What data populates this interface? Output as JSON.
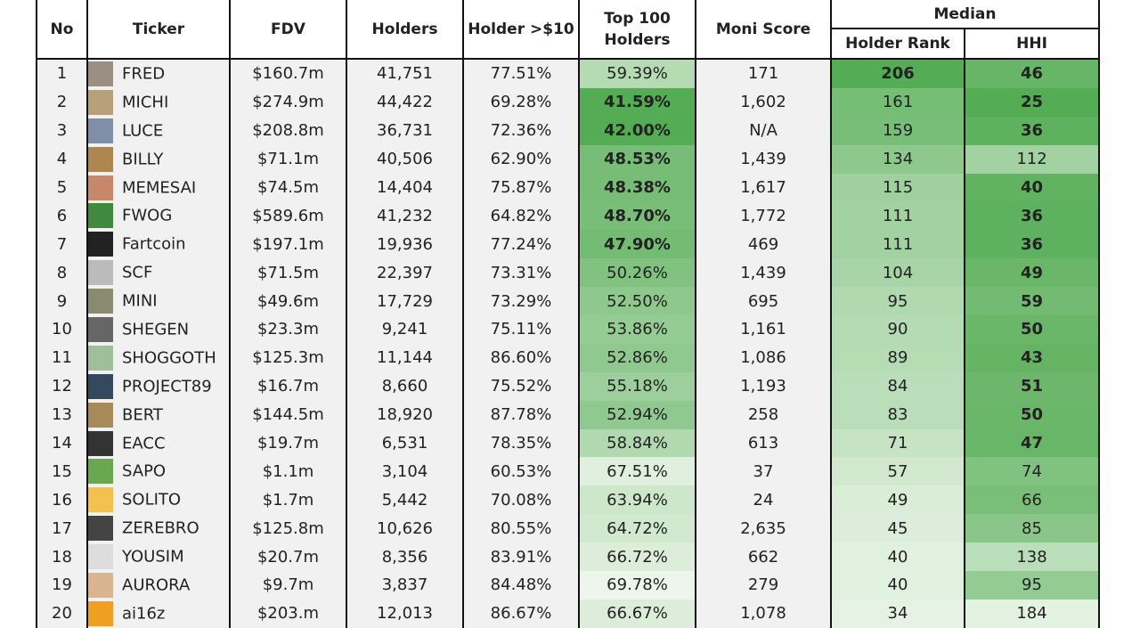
{
  "table": {
    "headers": [
      "No",
      "Ticker",
      "FDV",
      "Holders",
      "Holder >$10",
      "Top 100 Holders",
      "Moni Score"
    ],
    "group_header": "Median",
    "subheaders": [
      "Holder Rank",
      "HHI"
    ],
    "rows": [
      [
        1,
        "FRED",
        "$160.7m",
        "41,751",
        "77.51%",
        "59.39%",
        171,
        206,
        46
      ],
      [
        2,
        "MICHI",
        "$274.9m",
        "44,422",
        "69.28%",
        "41.59%",
        "1,602",
        161,
        25
      ],
      [
        3,
        "LUCE",
        "$208.8m",
        "36,731",
        "72.36%",
        "42.00%",
        "N/A",
        159,
        36
      ],
      [
        4,
        "BILLY",
        "$71.1m",
        "40,506",
        "62.90%",
        "48.53%",
        "1,439",
        134,
        112
      ],
      [
        5,
        "MEMESAI",
        "$74.5m",
        "14,404",
        "75.87%",
        "48.38%",
        "1,617",
        115,
        40
      ],
      [
        6,
        "FWOG",
        "$589.6m",
        "41,232",
        "64.82%",
        "48.70%",
        "1,772",
        111,
        36
      ],
      [
        7,
        "Fartcoin",
        "$197.1m",
        "19,936",
        "77.24%",
        "47.90%",
        469,
        111,
        36
      ],
      [
        8,
        "SCF",
        "$71.5m",
        "22,397",
        "73.31%",
        "50.26%",
        "1,439",
        104,
        49
      ],
      [
        9,
        "MINI",
        "$49.6m",
        "17,729",
        "73.29%",
        "52.50%",
        695,
        95,
        59
      ],
      [
        10,
        "SHEGEN",
        "$23.3m",
        "9,241",
        "75.11%",
        "53.86%",
        "1,161",
        90,
        50
      ],
      [
        11,
        "SHOGGOTH",
        "$125.3m",
        "11,144",
        "86.60%",
        "52.86%",
        "1,086",
        89,
        43
      ],
      [
        12,
        "PROJECT89",
        "$16.7m",
        "8,660",
        "75.52%",
        "55.18%",
        "1,193",
        84,
        51
      ],
      [
        13,
        "BERT",
        "$144.5m",
        "18,920",
        "87.78%",
        "52.94%",
        258,
        83,
        50
      ],
      [
        14,
        "EACC",
        "$19.7m",
        "6,531",
        "78.35%",
        "58.84%",
        613,
        71,
        47
      ],
      [
        15,
        "SAPO",
        "$1.1m",
        "3,104",
        "60.53%",
        "67.51%",
        37,
        57,
        74
      ],
      [
        16,
        "SOLITO",
        "$1.7m",
        "5,442",
        "70.08%",
        "63.94%",
        24,
        49,
        66
      ],
      [
        17,
        "ZEREBRO",
        "$125.8m",
        "10,626",
        "80.55%",
        "64.72%",
        "2,635",
        45,
        85
      ],
      [
        18,
        "YOUSIM",
        "$20.7m",
        "8,356",
        "83.91%",
        "66.72%",
        662,
        40,
        138
      ],
      [
        19,
        "AURORA",
        "$9.7m",
        "3,837",
        "84.48%",
        "69.78%",
        279,
        40,
        95
      ],
      [
        20,
        "ai16z",
        "$203.m",
        "12,013",
        "86.67%",
        "66.67%",
        "1,078",
        34,
        184
      ]
    ]
  }
}
